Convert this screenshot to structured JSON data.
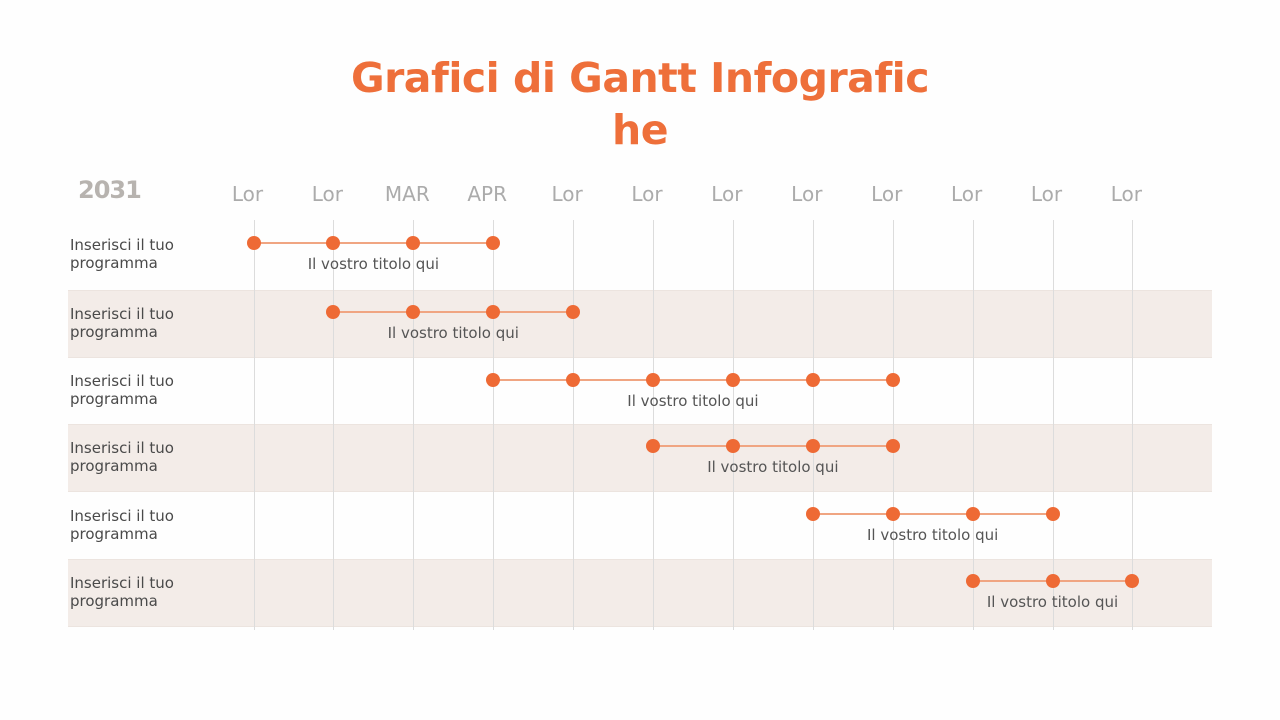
{
  "title": "Grafici di Gantt Infografiche",
  "title_lines": [
    "Grafici di Gantt Infografic",
    "he"
  ],
  "year": "2031",
  "colors": {
    "accent": "#ee6a35",
    "title": "#ee6f3a",
    "connector": "#f0a582",
    "shaded_row": "#f3ece8",
    "header_text": "#ababab",
    "gridline": "#dcdcdc"
  },
  "columns": [
    "Lor",
    "Lor",
    "MAR",
    "APR",
    "Lor",
    "Lor",
    "Lor",
    "Lor",
    "Lor",
    "Lor",
    "Lor",
    "Lor"
  ],
  "rows": [
    {
      "label": "Inserisci il tuo programma",
      "task": "Il vostro titolo qui",
      "start": 0,
      "end": 3
    },
    {
      "label": "Inserisci il tuo programma",
      "task": "Il vostro titolo qui",
      "start": 1,
      "end": 4
    },
    {
      "label": "Inserisci il tuo programma",
      "task": "Il vostro titolo qui",
      "start": 3,
      "end": 8
    },
    {
      "label": "Inserisci il tuo programma",
      "task": "Il vostro titolo qui",
      "start": 5,
      "end": 8
    },
    {
      "label": "Inserisci il tuo programma",
      "task": "Il vostro titolo qui",
      "start": 7,
      "end": 10
    },
    {
      "label": "Inserisci il tuo programma",
      "task": "Il vostro titolo qui",
      "start": 9,
      "end": 11
    }
  ],
  "chart_data": {
    "type": "gantt",
    "title": "Grafici di Gantt Infografiche",
    "year": "2031",
    "categories": [
      "Lor",
      "Lor",
      "MAR",
      "APR",
      "Lor",
      "Lor",
      "Lor",
      "Lor",
      "Lor",
      "Lor",
      "Lor",
      "Lor"
    ],
    "series": [
      {
        "name": "Inserisci il tuo programma",
        "task": "Il vostro titolo qui",
        "start_index": 0,
        "end_index": 3,
        "points": [
          0,
          1,
          2,
          3
        ]
      },
      {
        "name": "Inserisci il tuo programma",
        "task": "Il vostro titolo qui",
        "start_index": 1,
        "end_index": 4,
        "points": [
          1,
          2,
          3,
          4
        ]
      },
      {
        "name": "Inserisci il tuo programma",
        "task": "Il vostro titolo qui",
        "start_index": 3,
        "end_index": 8,
        "points": [
          3,
          4,
          5,
          6,
          7,
          8
        ]
      },
      {
        "name": "Inserisci il tuo programma",
        "task": "Il vostro titolo qui",
        "start_index": 5,
        "end_index": 8,
        "points": [
          5,
          6,
          7,
          8
        ]
      },
      {
        "name": "Inserisci il tuo programma",
        "task": "Il vostro titolo qui",
        "start_index": 7,
        "end_index": 10,
        "points": [
          7,
          8,
          9,
          10
        ]
      },
      {
        "name": "Inserisci il tuo programma",
        "task": "Il vostro titolo qui",
        "start_index": 9,
        "end_index": 11,
        "points": [
          9,
          10,
          11
        ]
      }
    ],
    "grid": true,
    "legend": "none"
  }
}
